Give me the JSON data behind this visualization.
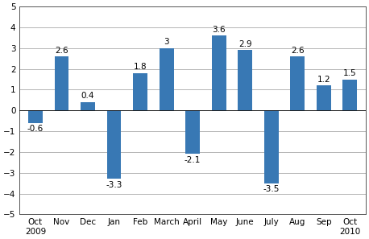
{
  "categories": [
    "Oct\n2009",
    "Nov",
    "Dec",
    "Jan",
    "Feb",
    "March",
    "April",
    "May",
    "June",
    "July",
    "Aug",
    "Sep",
    "Oct\n2010"
  ],
  "values": [
    -0.6,
    2.6,
    0.4,
    -3.3,
    1.8,
    3.0,
    -2.1,
    3.6,
    2.9,
    -3.5,
    2.6,
    1.2,
    1.5
  ],
  "labels": [
    "-0.6",
    "2.6",
    "0.4",
    "-3.3",
    "1.8",
    "3",
    "-2.1",
    "3.6",
    "2.9",
    "-3.5",
    "2.6",
    "1.2",
    "1.5"
  ],
  "bar_color": "#3878B4",
  "ylim": [
    -5,
    5
  ],
  "yticks": [
    -5,
    -4,
    -3,
    -2,
    -1,
    0,
    1,
    2,
    3,
    4,
    5
  ],
  "grid_color": "#aaaaaa",
  "background_color": "#ffffff",
  "label_fontsize": 7.5,
  "tick_fontsize": 7.5,
  "bar_width": 0.55
}
